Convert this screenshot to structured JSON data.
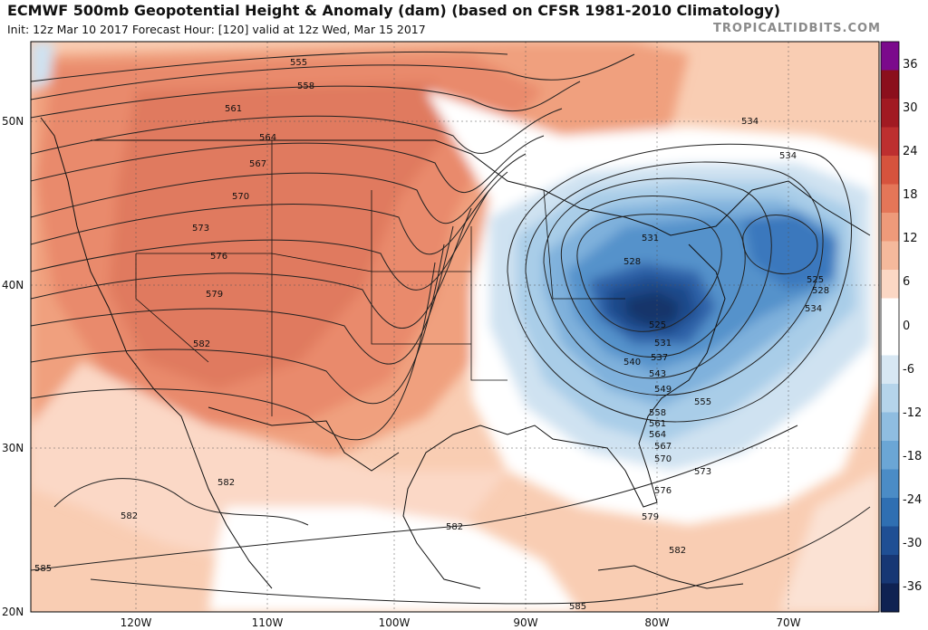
{
  "header": {
    "title": "ECMWF 500mb Geopotential Height & Anomaly (dam) (based on CFSR 1981-2010 Climatology)",
    "subtitle": "Init: 12z Mar 10 2017   Forecast Hour: [120]   valid at 12z Wed, Mar 15 2017",
    "brand": "TROPICALTIDBITS.COM"
  },
  "map": {
    "lat_labels": [
      "50N",
      "40N",
      "30N",
      "20N"
    ],
    "lon_labels": [
      "120W",
      "110W",
      "100W",
      "90W",
      "80W",
      "70W"
    ]
  },
  "contour_labels": [
    "555",
    "558",
    "561",
    "564",
    "567",
    "570",
    "573",
    "576",
    "579",
    "582",
    "582",
    "582",
    "582",
    "585",
    "585",
    "534",
    "534",
    "531",
    "528",
    "525",
    "525",
    "528",
    "531",
    "534",
    "537",
    "540",
    "543",
    "549",
    "555",
    "558",
    "561",
    "564",
    "567",
    "570",
    "573",
    "576",
    "579",
    "582"
  ],
  "colorbar": {
    "ticks": [
      "36",
      "30",
      "24",
      "18",
      "12",
      "6",
      "0",
      "-6",
      "-12",
      "-18",
      "-24",
      "-30",
      "-36"
    ],
    "colors": [
      "#7b0a8c",
      "#8b0f1c",
      "#a11a22",
      "#bd2f2f",
      "#d6533d",
      "#e47658",
      "#ee9a7a",
      "#f5b99c",
      "#fbd7c4",
      "#ffffff",
      "#ffffff",
      "#d7e7f3",
      "#b5d4ea",
      "#8fbde0",
      "#6ba6d5",
      "#4b8cc6",
      "#2f6fb2",
      "#1f4f94",
      "#173774",
      "#0f2252"
    ]
  }
}
